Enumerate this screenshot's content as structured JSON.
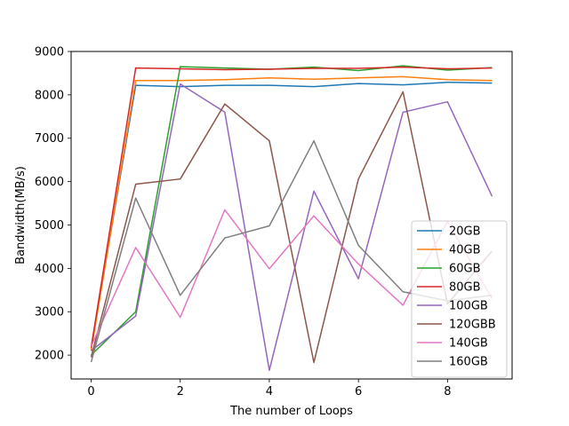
{
  "chart_data": {
    "type": "line",
    "title": "",
    "xlabel": "The number of Loops",
    "ylabel": "Bandwidth(MB/s)",
    "x": [
      0,
      1,
      2,
      3,
      4,
      5,
      6,
      7,
      8,
      9
    ],
    "xlim": [
      -0.45,
      9.45
    ],
    "ylim": [
      1450,
      9000
    ],
    "xticks": [
      0,
      2,
      4,
      6,
      8
    ],
    "yticks": [
      2000,
      3000,
      4000,
      5000,
      6000,
      7000,
      8000,
      9000
    ],
    "grid": false,
    "legend_position": "lower right",
    "series": [
      {
        "name": "20GB",
        "color": "#1f77b4",
        "values": [
          2150,
          8220,
          8190,
          8220,
          8220,
          8190,
          8260,
          8230,
          8290,
          8270
        ]
      },
      {
        "name": "40GB",
        "color": "#ff7f0e",
        "values": [
          2100,
          8330,
          8330,
          8350,
          8390,
          8360,
          8390,
          8420,
          8350,
          8330
        ]
      },
      {
        "name": "60GB",
        "color": "#2ca02c",
        "values": [
          2000,
          3000,
          8650,
          8620,
          8590,
          8640,
          8560,
          8670,
          8570,
          8630
        ]
      },
      {
        "name": "80GB",
        "color": "#d62728",
        "values": [
          2180,
          8620,
          8600,
          8580,
          8590,
          8610,
          8610,
          8640,
          8600,
          8620
        ]
      },
      {
        "name": "100GB",
        "color": "#9467bd",
        "values": [
          2100,
          2900,
          8250,
          7600,
          1650,
          5780,
          3760,
          7600,
          7840,
          5660
        ]
      },
      {
        "name": "120GBB",
        "color": "#8c564b",
        "values": [
          1950,
          5940,
          6060,
          7790,
          6940,
          1830,
          6060,
          8070,
          3180,
          4400
        ]
      },
      {
        "name": "140GB",
        "color": "#e377c2",
        "values": [
          2200,
          4480,
          2870,
          5350,
          3990,
          5210,
          4100,
          3150,
          5080,
          3300
        ]
      },
      {
        "name": "160GB",
        "color": "#7f7f7f",
        "values": [
          1840,
          5620,
          3380,
          4700,
          4980,
          6940,
          4530,
          3460,
          3250,
          3380
        ]
      }
    ]
  }
}
